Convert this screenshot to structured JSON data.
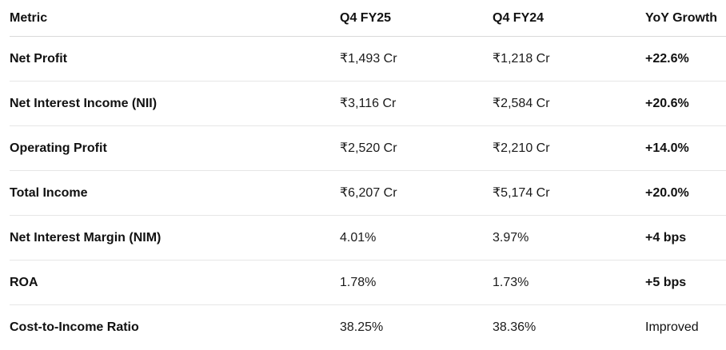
{
  "table": {
    "headers": [
      "Metric",
      "Q4 FY25",
      "Q4 FY24",
      "YoY Growth"
    ],
    "rows": [
      {
        "metric": "Net Profit",
        "fy25": "₹1,493 Cr",
        "fy24": "₹1,218 Cr",
        "growth": "+22.6%",
        "growth_bold": true
      },
      {
        "metric": "Net Interest Income (NII)",
        "fy25": "₹3,116 Cr",
        "fy24": "₹2,584 Cr",
        "growth": "+20.6%",
        "growth_bold": true
      },
      {
        "metric": "Operating Profit",
        "fy25": "₹2,520 Cr",
        "fy24": "₹2,210 Cr",
        "growth": "+14.0%",
        "growth_bold": true
      },
      {
        "metric": "Total Income",
        "fy25": "₹6,207 Cr",
        "fy24": "₹5,174 Cr",
        "growth": "+20.0%",
        "growth_bold": true
      },
      {
        "metric": "Net Interest Margin (NIM)",
        "fy25": "4.01%",
        "fy24": "3.97%",
        "growth": "+4 bps",
        "growth_bold": true
      },
      {
        "metric": "ROA",
        "fy25": "1.78%",
        "fy24": "1.73%",
        "growth": "+5 bps",
        "growth_bold": true
      },
      {
        "metric": "Cost-to-Income Ratio",
        "fy25": "38.25%",
        "fy24": "38.36%",
        "growth": "Improved",
        "growth_bold": false
      }
    ]
  }
}
